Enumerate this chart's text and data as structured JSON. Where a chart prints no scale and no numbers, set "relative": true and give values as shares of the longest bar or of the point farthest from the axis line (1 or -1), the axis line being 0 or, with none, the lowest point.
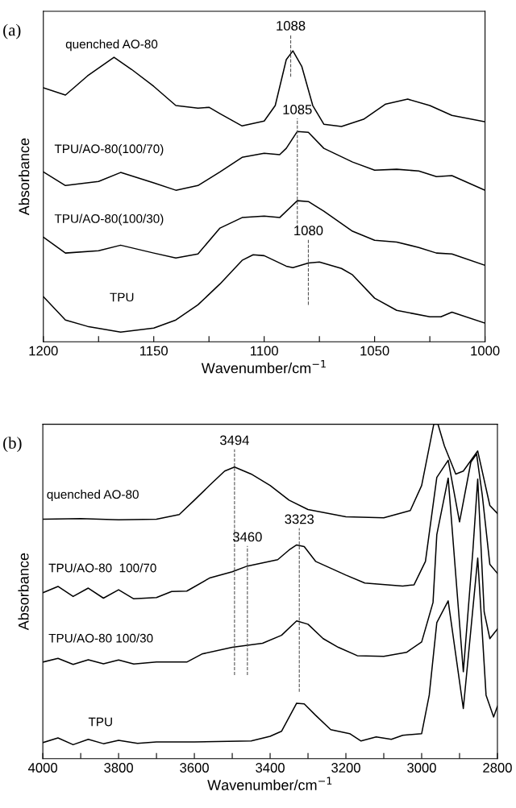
{
  "chart_data": [
    {
      "type": "line",
      "relative": true,
      "xlabel": "Wavenumber/cm$^{−1}$",
      "ylabel": "Absorbance",
      "xlim": [
        1200,
        1000
      ],
      "tick_labels": "x",
      "grid": false,
      "legend": false,
      "xticks": [
        1200,
        {
          "value": 1175,
          "label": null
        },
        1150,
        {
          "value": 1125,
          "label": null
        },
        1100,
        {
          "value": 1075,
          "label": null
        },
        1050,
        {
          "value": 1025,
          "label": null
        },
        1000
      ],
      "annotations": [
        "(a)"
      ],
      "ref_lines": [
        {
          "axis": "x",
          "value": 1088,
          "label": "1088",
          "line_style": "dashed",
          "color": "#555555"
        },
        {
          "axis": "x",
          "value": 1085,
          "label": "1085",
          "line_style": "dashed",
          "color": "#555555"
        },
        {
          "axis": "x",
          "value": 1080,
          "label": "1080",
          "line_style": "dashed",
          "color": "#555555"
        }
      ],
      "series": [
        {
          "name": "quenched AO-80",
          "color": "#000000",
          "x": [
            1200,
            1190,
            1180,
            1168,
            1160,
            1150,
            1140,
            1130,
            1125,
            1120,
            1110,
            1100,
            1095,
            1090,
            1087,
            1083,
            1078,
            1073,
            1065,
            1055,
            1045,
            1035,
            1025,
            1015,
            1000
          ],
          "values": [
            0.873,
            0.848,
            0.914,
            0.978,
            0.936,
            0.878,
            0.812,
            0.803,
            0.806,
            0.784,
            0.742,
            0.759,
            0.812,
            0.97,
            1.0,
            0.947,
            0.812,
            0.748,
            0.74,
            0.765,
            0.817,
            0.834,
            0.812,
            0.778,
            0.756
          ]
        },
        {
          "name": "TPU/AO-80(100/70)",
          "color": "#000000",
          "x": [
            1200,
            1190,
            1175,
            1165,
            1150,
            1140,
            1130,
            1120,
            1110,
            1100,
            1093,
            1090,
            1085,
            1080,
            1073,
            1060,
            1050,
            1040,
            1030,
            1022,
            1015,
            1000
          ],
          "values": [
            0.584,
            0.537,
            0.551,
            0.582,
            0.546,
            0.521,
            0.537,
            0.584,
            0.634,
            0.648,
            0.643,
            0.665,
            0.723,
            0.72,
            0.665,
            0.618,
            0.59,
            0.593,
            0.587,
            0.568,
            0.571,
            0.521
          ]
        },
        {
          "name": "TPU/AO-80(100/30)",
          "color": "#000000",
          "x": [
            1200,
            1190,
            1175,
            1165,
            1150,
            1140,
            1130,
            1120,
            1110,
            1100,
            1093,
            1085,
            1080,
            1073,
            1060,
            1050,
            1040,
            1030,
            1022,
            1015,
            1000
          ],
          "values": [
            0.36,
            0.305,
            0.313,
            0.332,
            0.305,
            0.288,
            0.302,
            0.391,
            0.427,
            0.432,
            0.427,
            0.485,
            0.482,
            0.449,
            0.38,
            0.349,
            0.343,
            0.324,
            0.305,
            0.302,
            0.263
          ]
        },
        {
          "name": "TPU",
          "color": "#000000",
          "x": [
            1200,
            1190,
            1180,
            1165,
            1150,
            1140,
            1130,
            1120,
            1110,
            1105,
            1100,
            1090,
            1087,
            1080,
            1075,
            1065,
            1060,
            1050,
            1040,
            1025,
            1020,
            1015,
            1000
          ],
          "values": [
            0.155,
            0.075,
            0.053,
            0.033,
            0.047,
            0.075,
            0.127,
            0.199,
            0.28,
            0.299,
            0.296,
            0.26,
            0.255,
            0.271,
            0.274,
            0.252,
            0.23,
            0.15,
            0.108,
            0.086,
            0.086,
            0.102,
            0.064
          ]
        }
      ]
    },
    {
      "type": "line",
      "relative": true,
      "xlabel": "Wavenumber/cm$^{−1}$",
      "ylabel": "Absorbance",
      "xlim": [
        4000,
        2800
      ],
      "tick_labels": "x",
      "grid": false,
      "legend": false,
      "xticks": [
        4000,
        {
          "value": 3900,
          "label": null
        },
        3800,
        {
          "value": 3700,
          "label": null
        },
        3600,
        {
          "value": 3500,
          "label": null
        },
        3400,
        {
          "value": 3300,
          "label": null
        },
        3200,
        {
          "value": 3100,
          "label": null
        },
        3000,
        {
          "value": 2900,
          "label": null
        },
        2800
      ],
      "annotations": [
        "(b)"
      ],
      "ref_lines": [
        {
          "axis": "x",
          "value": 3494,
          "label": "3494",
          "line_style": "dashed",
          "color": "#555555"
        },
        {
          "axis": "x",
          "value": 3460,
          "label": "3460",
          "line_style": "dashed",
          "color": "#555555"
        },
        {
          "axis": "x",
          "value": 3323,
          "label": "3323",
          "line_style": "dashed",
          "color": "#555555"
        }
      ],
      "series": [
        {
          "name": "quenched AO-80",
          "color": "#000000",
          "x": [
            4000,
            3900,
            3800,
            3700,
            3640,
            3600,
            3560,
            3520,
            3494,
            3450,
            3400,
            3350,
            3300,
            3200,
            3100,
            3030,
            3000,
            2968,
            2957,
            2940,
            2910,
            2890,
            2852,
            2820,
            2800
          ],
          "values": [
            0.716,
            0.718,
            0.714,
            0.716,
            0.73,
            0.773,
            0.817,
            0.86,
            0.872,
            0.851,
            0.817,
            0.773,
            0.745,
            0.723,
            0.72,
            0.742,
            0.817,
            1.0,
            1.0,
            0.935,
            0.851,
            0.86,
            0.92,
            0.757,
            0.733
          ]
        },
        {
          "name": "TPU/AO-80  100/70",
          "color": "#000000",
          "x": [
            4000,
            3960,
            3920,
            3880,
            3840,
            3800,
            3760,
            3700,
            3660,
            3620,
            3560,
            3500,
            3460,
            3380,
            3350,
            3330,
            3310,
            3280,
            3200,
            3150,
            3050,
            3020,
            2990,
            2960,
            2930,
            2900,
            2870,
            2855,
            2840,
            2820,
            2800
          ],
          "values": [
            0.496,
            0.515,
            0.485,
            0.51,
            0.48,
            0.505,
            0.478,
            0.482,
            0.5,
            0.501,
            0.54,
            0.559,
            0.576,
            0.595,
            0.624,
            0.639,
            0.634,
            0.59,
            0.549,
            0.525,
            0.516,
            0.52,
            0.59,
            0.841,
            0.892,
            0.708,
            0.887,
            0.911,
            0.788,
            0.581,
            0.554
          ]
        },
        {
          "name": "TPU/AO-80 100/30",
          "color": "#000000",
          "x": [
            4000,
            3960,
            3920,
            3880,
            3840,
            3800,
            3760,
            3700,
            3620,
            3580,
            3500,
            3420,
            3370,
            3330,
            3300,
            3260,
            3220,
            3170,
            3100,
            3040,
            3000,
            2970,
            2960,
            2930,
            2890,
            2865,
            2852,
            2835,
            2820,
            2800
          ],
          "values": [
            0.289,
            0.3,
            0.282,
            0.296,
            0.284,
            0.295,
            0.283,
            0.289,
            0.289,
            0.313,
            0.333,
            0.345,
            0.369,
            0.412,
            0.402,
            0.359,
            0.333,
            0.308,
            0.306,
            0.318,
            0.349,
            0.467,
            0.67,
            0.839,
            0.26,
            0.619,
            0.836,
            0.439,
            0.359,
            0.388
          ]
        },
        {
          "name": "TPU",
          "color": "#000000",
          "x": [
            4000,
            3960,
            3920,
            3880,
            3840,
            3800,
            3750,
            3700,
            3600,
            3450,
            3400,
            3370,
            3330,
            3310,
            3280,
            3240,
            3190,
            3160,
            3120,
            3080,
            3050,
            3000,
            2980,
            2960,
            2930,
            2890,
            2852,
            2830,
            2810,
            2800
          ],
          "values": [
            0.048,
            0.062,
            0.042,
            0.058,
            0.045,
            0.055,
            0.046,
            0.05,
            0.05,
            0.053,
            0.067,
            0.082,
            0.166,
            0.164,
            0.13,
            0.087,
            0.075,
            0.053,
            0.065,
            0.058,
            0.07,
            0.075,
            0.19,
            0.407,
            0.472,
            0.15,
            0.6,
            0.19,
            0.125,
            0.157
          ]
        }
      ]
    }
  ]
}
